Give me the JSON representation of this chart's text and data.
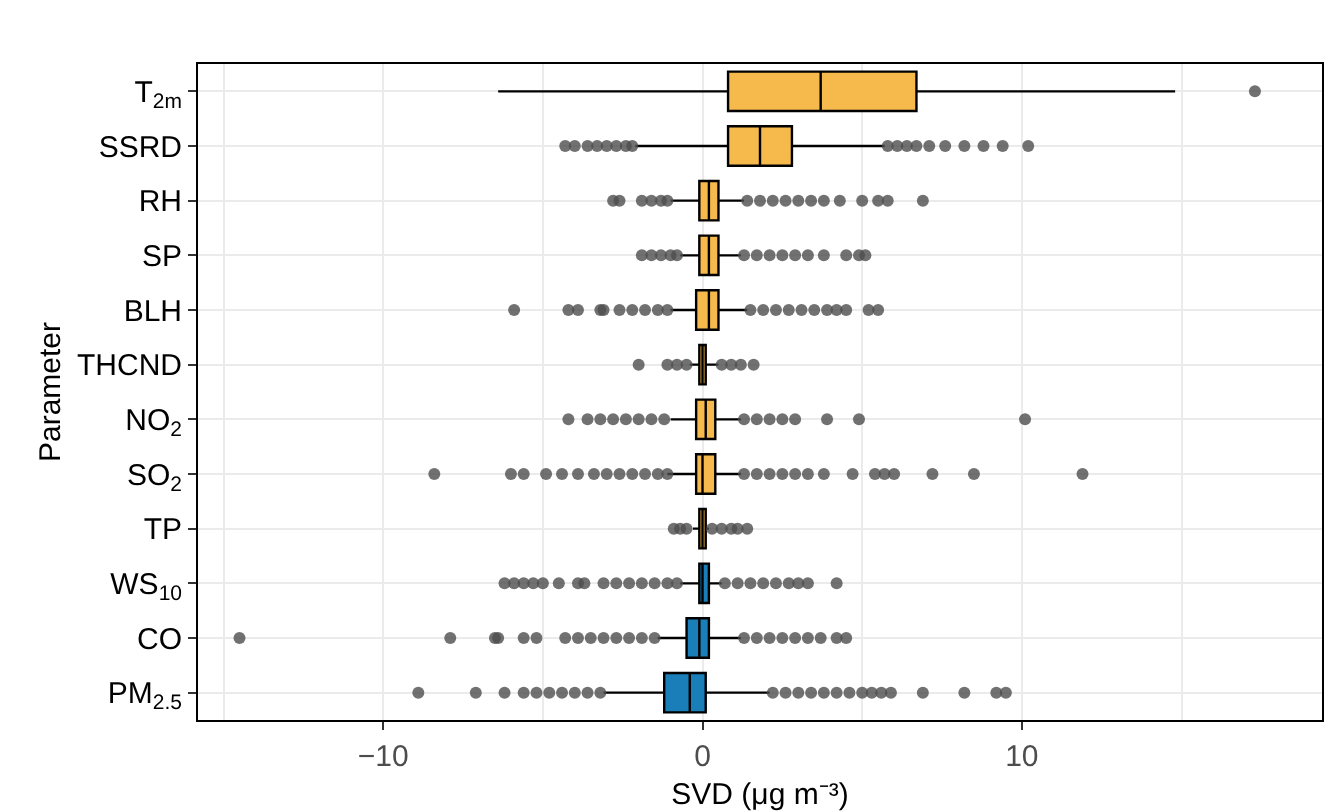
{
  "chart_data": {
    "type": "box",
    "orientation": "horizontal",
    "xlabel": "SVD (μg m⁻³)",
    "ylabel": "Parameter",
    "categories": [
      "T$_{2m}$",
      "SSRD",
      "RH",
      "SP",
      "BLH",
      "THCND",
      "NO$_{2}$",
      "SO$_{2}$",
      "TP",
      "WS$_{10}$",
      "CO",
      "PM$_{2.5}$"
    ],
    "colors": [
      "#f6b94b",
      "#f6b94b",
      "#f6b94b",
      "#f6b94b",
      "#f6b94b",
      "#f6b94b",
      "#f6b94b",
      "#f6b94b",
      "#f6b94b",
      "#1a7fb8",
      "#1a7fb8",
      "#1a7fb8"
    ],
    "boxes": [
      {
        "low": -6.4,
        "q1": 0.8,
        "median": 3.7,
        "q3": 6.7,
        "high": 14.8,
        "outliers": [
          17.3
        ]
      },
      {
        "low": -2.1,
        "q1": 0.8,
        "median": 1.8,
        "q3": 2.8,
        "high": 5.7,
        "outliers": [
          -4.3,
          -4.0,
          -3.6,
          -3.3,
          -3.0,
          -2.7,
          -2.4,
          -2.2,
          5.8,
          6.1,
          6.4,
          6.7,
          7.1,
          7.6,
          8.2,
          8.8,
          9.4,
          10.2
        ]
      },
      {
        "low": -1.0,
        "q1": -0.1,
        "median": 0.2,
        "q3": 0.5,
        "high": 1.3,
        "outliers": [
          -2.8,
          -2.6,
          -1.9,
          -1.6,
          -1.3,
          -1.1,
          1.4,
          1.8,
          2.2,
          2.6,
          3.0,
          3.4,
          3.8,
          4.3,
          5.0,
          5.5,
          5.8,
          6.9
        ]
      },
      {
        "low": -0.7,
        "q1": -0.1,
        "median": 0.2,
        "q3": 0.5,
        "high": 1.2,
        "outliers": [
          -1.9,
          -1.6,
          -1.3,
          -1.0,
          -0.8,
          1.3,
          1.7,
          2.1,
          2.5,
          2.9,
          3.3,
          3.8,
          4.5,
          4.9,
          5.1
        ]
      },
      {
        "low": -1.0,
        "q1": -0.2,
        "median": 0.2,
        "q3": 0.5,
        "high": 1.4,
        "outliers": [
          -5.9,
          -4.2,
          -3.9,
          -3.2,
          -3.1,
          -2.6,
          -2.2,
          -1.8,
          -1.4,
          -1.1,
          1.5,
          1.9,
          2.3,
          2.7,
          3.1,
          3.5,
          3.9,
          4.2,
          4.5,
          5.2,
          5.5
        ]
      },
      {
        "low": -0.4,
        "q1": -0.1,
        "median": 0.0,
        "q3": 0.1,
        "high": 0.5,
        "outliers": [
          -2.0,
          -1.1,
          -0.8,
          -0.5,
          0.6,
          0.9,
          1.2,
          1.6
        ]
      },
      {
        "low": -1.0,
        "q1": -0.2,
        "median": 0.1,
        "q3": 0.4,
        "high": 1.2,
        "outliers": [
          -4.2,
          -3.6,
          -3.2,
          -2.8,
          -2.4,
          -2.0,
          -1.6,
          -1.2,
          1.3,
          1.7,
          2.1,
          2.5,
          2.9,
          3.9,
          4.9,
          10.1
        ]
      },
      {
        "low": -1.1,
        "q1": -0.2,
        "median": 0.0,
        "q3": 0.4,
        "high": 1.2,
        "outliers": [
          -8.4,
          -6.0,
          -5.6,
          -4.9,
          -4.4,
          -3.9,
          -3.4,
          -3.0,
          -2.6,
          -2.2,
          -1.8,
          -1.4,
          -1.1,
          1.3,
          1.7,
          2.1,
          2.5,
          2.9,
          3.3,
          3.8,
          4.7,
          5.4,
          5.7,
          6.0,
          7.2,
          8.5,
          11.9
        ]
      },
      {
        "low": -0.3,
        "q1": -0.1,
        "median": 0.0,
        "q3": 0.1,
        "high": 0.2,
        "outliers": [
          -0.9,
          -0.7,
          -0.5,
          0.3,
          0.6,
          0.9,
          1.1,
          1.4
        ]
      },
      {
        "low": -0.7,
        "q1": -0.1,
        "median": 0.0,
        "q3": 0.2,
        "high": 0.6,
        "outliers": [
          -6.2,
          -5.9,
          -5.6,
          -5.3,
          -5.0,
          -4.5,
          -3.9,
          -3.7,
          -3.1,
          -2.7,
          -2.3,
          -1.9,
          -1.5,
          -1.1,
          -0.8,
          0.7,
          1.1,
          1.5,
          1.9,
          2.3,
          2.7,
          3.0,
          3.3,
          4.2
        ]
      },
      {
        "low": -1.4,
        "q1": -0.5,
        "median": -0.1,
        "q3": 0.2,
        "high": 1.2,
        "outliers": [
          -14.5,
          -7.9,
          -6.5,
          -6.4,
          -5.6,
          -5.2,
          -4.3,
          -3.9,
          -3.5,
          -3.1,
          -2.7,
          -2.3,
          -1.9,
          -1.5,
          1.3,
          1.7,
          2.1,
          2.5,
          2.9,
          3.3,
          3.7,
          4.2,
          4.5
        ]
      },
      {
        "low": -3.1,
        "q1": -1.2,
        "median": -0.4,
        "q3": 0.1,
        "high": 2.1,
        "outliers": [
          -8.9,
          -7.1,
          -6.2,
          -5.6,
          -5.2,
          -4.8,
          -4.4,
          -4.0,
          -3.6,
          -3.2,
          2.2,
          2.6,
          3.0,
          3.4,
          3.8,
          4.2,
          4.6,
          5.0,
          5.3,
          5.6,
          5.9,
          6.9,
          8.2,
          9.2,
          9.5
        ]
      }
    ],
    "xlim": [
      -15.8,
      19.4
    ],
    "xticks": [
      -10,
      0,
      10
    ],
    "grid": true
  }
}
